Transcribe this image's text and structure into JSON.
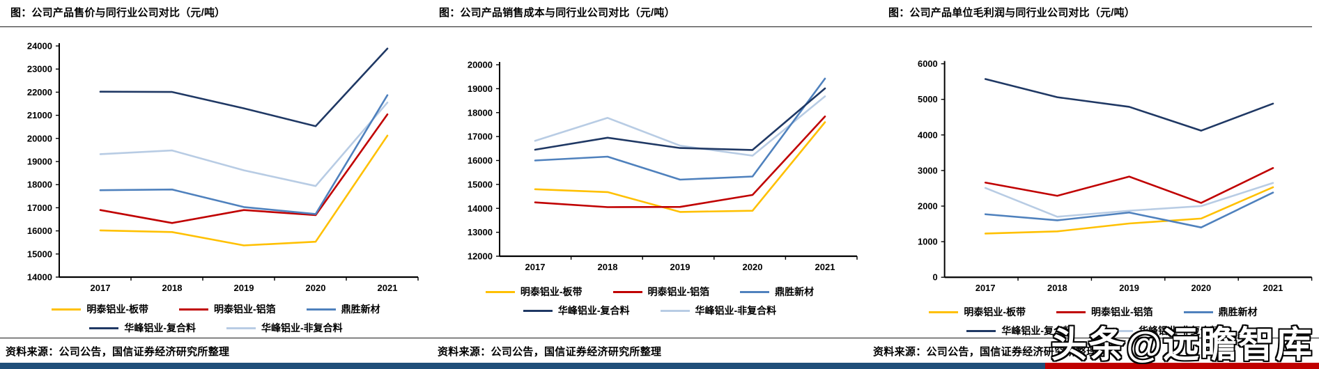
{
  "page": {
    "watermark": "头条@远瞻智库",
    "footer": {
      "blue": "#1F4E79",
      "red": "#C00000"
    }
  },
  "chart_data": [
    {
      "type": "line",
      "title": "图：公司产品售价与同行业公司对比（元/吨）",
      "xlabel": "",
      "ylabel": "",
      "categories": [
        "2017",
        "2018",
        "2019",
        "2020",
        "2021"
      ],
      "series": [
        {
          "name": "明泰铝业-板带",
          "color": "#FFC000",
          "values": [
            16020,
            15950,
            15370,
            15530,
            20120
          ]
        },
        {
          "name": "明泰铝业-铝箔",
          "color": "#C00000",
          "values": [
            16900,
            16340,
            16900,
            16680,
            21040
          ]
        },
        {
          "name": "鼎胜新材",
          "color": "#4F81BD",
          "values": [
            17760,
            17790,
            17030,
            16730,
            21870
          ]
        },
        {
          "name": "华峰铝业-复合料",
          "color": "#1F3864",
          "values": [
            22020,
            22010,
            21300,
            20530,
            23890
          ]
        },
        {
          "name": "华峰铝业-非复合料",
          "color": "#B8CCE4",
          "values": [
            19320,
            19480,
            18620,
            17940,
            21550
          ]
        }
      ],
      "ylim": [
        14000,
        24000
      ],
      "ytick_step": 1000,
      "grid": false,
      "legend_position": "bottom",
      "legend_rows": [
        [
          "明泰铝业-板带",
          "明泰铝业-铝箔",
          "鼎胜新材"
        ],
        [
          "华峰铝业-复合料",
          "华峰铝业-非复合料"
        ]
      ],
      "source": "资料来源：公司公告，国信证券经济研究所整理"
    },
    {
      "type": "line",
      "title": "图：公司产品销售成本与同行业公司对比（元/吨）",
      "xlabel": "",
      "ylabel": "",
      "categories": [
        "2017",
        "2018",
        "2019",
        "2020",
        "2021"
      ],
      "series": [
        {
          "name": "明泰铝业-板带",
          "color": "#FFC000",
          "values": [
            14800,
            14680,
            13850,
            13900,
            17600
          ]
        },
        {
          "name": "明泰铝业-铝箔",
          "color": "#C00000",
          "values": [
            14250,
            14050,
            14060,
            14560,
            17840
          ]
        },
        {
          "name": "鼎胜新材",
          "color": "#4F81BD",
          "values": [
            16000,
            16160,
            15200,
            15330,
            19420
          ]
        },
        {
          "name": "华峰铝业-复合料",
          "color": "#1F3864",
          "values": [
            16450,
            16950,
            16520,
            16440,
            19010
          ]
        },
        {
          "name": "华峰铝业-非复合料",
          "color": "#B8CCE4",
          "values": [
            16820,
            17780,
            16620,
            16200,
            18680
          ]
        }
      ],
      "ylim": [
        12000,
        20000
      ],
      "ytick_step": 1000,
      "grid": false,
      "legend_position": "bottom",
      "legend_rows": [
        [
          "明泰铝业-板带",
          "明泰铝业-铝箔",
          "鼎胜新材"
        ],
        [
          "华峰铝业-复合料",
          "华峰铝业-非复合料"
        ]
      ],
      "source": "资料来源：公司公告，国信证券经济研究所整理"
    },
    {
      "type": "line",
      "title": "图：公司产品单位毛利润与同行业公司对比（元/吨）",
      "xlabel": "",
      "ylabel": "",
      "categories": [
        "2017",
        "2018",
        "2019",
        "2020",
        "2021"
      ],
      "series": [
        {
          "name": "明泰铝业-板带",
          "color": "#FFC000",
          "values": [
            1230,
            1290,
            1510,
            1650,
            2530
          ]
        },
        {
          "name": "明泰铝业-铝箔",
          "color": "#C00000",
          "values": [
            2660,
            2290,
            2830,
            2090,
            3070
          ]
        },
        {
          "name": "鼎胜新材",
          "color": "#4F81BD",
          "values": [
            1770,
            1600,
            1820,
            1400,
            2380
          ]
        },
        {
          "name": "华峰铝业-复合料",
          "color": "#1F3864",
          "values": [
            5570,
            5060,
            4790,
            4120,
            4880
          ]
        },
        {
          "name": "华峰铝业-非复合料",
          "color": "#B8CCE4",
          "values": [
            2510,
            1700,
            1870,
            2000,
            2650
          ]
        }
      ],
      "ylim": [
        0,
        6000
      ],
      "ytick_step": 1000,
      "grid": false,
      "legend_position": "bottom",
      "legend_rows": [
        [
          "明泰铝业-板带",
          "明泰铝业-铝箔",
          "鼎胜新材"
        ],
        [
          "华峰铝业-复合料",
          "华峰铝业-非复合料"
        ]
      ],
      "source": "资料来源：公司公告，国信证券经济研究所整理"
    }
  ]
}
